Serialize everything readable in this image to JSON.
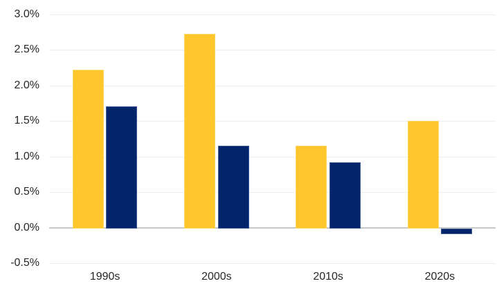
{
  "chart_data": {
    "type": "bar",
    "title": "",
    "xlabel": "",
    "ylabel": "",
    "categories": [
      "1990s",
      "2000s",
      "2010s",
      "2020s"
    ],
    "series": [
      {
        "name": "yellow",
        "color": "#FFC72C",
        "border_color": "#FFD564",
        "values": [
          2.22,
          2.73,
          1.15,
          1.5
        ]
      },
      {
        "name": "navy",
        "color": "#03246B",
        "border_color": "#3E5B9B",
        "values": [
          1.71,
          1.15,
          0.92,
          -0.08
        ]
      }
    ],
    "ylim": [
      -0.5,
      3.0
    ],
    "ytick_step": 0.5,
    "ytick_labels": [
      "3.0%",
      "2.5%",
      "2.0%",
      "1.5%",
      "1.0%",
      "0.5%",
      "0.0%",
      "-0.5%"
    ],
    "grid": true,
    "legend": false,
    "gridline_color": "#ECECEC",
    "zeroline_color": "#C8C8C8",
    "axis_text_color": "#262626",
    "background_color": "#FFFFFF"
  }
}
